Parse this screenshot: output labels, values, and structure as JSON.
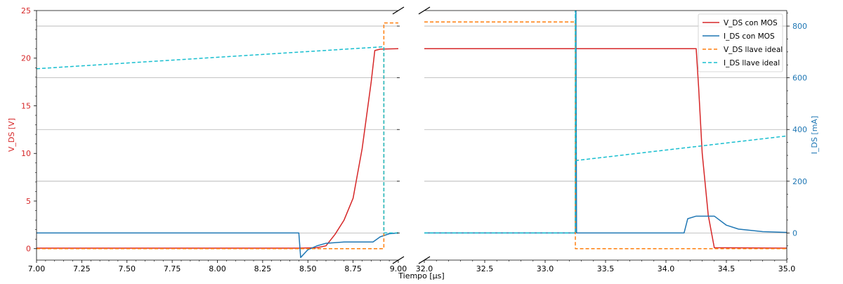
{
  "chart_data": {
    "type": "line",
    "xlabel": "Tiempo [μs]",
    "ylabel_left": "V_DS [V]",
    "ylabel_right": "I_DS [mA]",
    "left_panel": {
      "xlim": [
        7.0,
        9.0
      ],
      "xticks": [
        7.0,
        7.25,
        7.5,
        7.75,
        8.0,
        8.25,
        8.5,
        8.75,
        9.0
      ],
      "xtick_labels": [
        "7.00",
        "7.25",
        "7.50",
        "7.75",
        "8.00",
        "8.25",
        "8.50",
        "8.75",
        "9.00"
      ]
    },
    "right_panel": {
      "xlim": [
        32.0,
        35.0
      ],
      "xticks": [
        32.0,
        32.5,
        33.0,
        33.5,
        34.0,
        34.5,
        35.0
      ],
      "xtick_labels": [
        "32.0",
        "32.5",
        "33.0",
        "33.5",
        "34.0",
        "34.5",
        "35.0"
      ]
    },
    "y_left": {
      "lim": [
        -1.2,
        25
      ],
      "ticks": [
        0,
        5,
        10,
        15,
        20,
        25
      ],
      "tick_labels": [
        "0",
        "5",
        "10",
        "15",
        "20",
        "25"
      ],
      "color": "#d62728"
    },
    "y_right": {
      "lim": [
        -105,
        860
      ],
      "ticks": [
        0,
        200,
        400,
        600,
        800
      ],
      "tick_labels": [
        "0",
        "200",
        "400",
        "600",
        "800"
      ],
      "color": "#1f77b4"
    },
    "grid": "horizontal, right axis",
    "legend_position": "top-right",
    "series": [
      {
        "key": "vds_mos",
        "name": "V_DS con MOS",
        "axis": "left",
        "color": "#d62728",
        "dash": "solid",
        "left": [
          [
            7.0,
            0.05
          ],
          [
            8.45,
            0.05
          ],
          [
            8.55,
            0.1
          ],
          [
            8.6,
            0.3
          ],
          [
            8.65,
            1.5
          ],
          [
            8.7,
            3.0
          ],
          [
            8.75,
            5.3
          ],
          [
            8.8,
            10.5
          ],
          [
            8.85,
            17.5
          ],
          [
            8.87,
            20.8
          ],
          [
            8.9,
            20.95
          ],
          [
            9.0,
            21.0
          ]
        ],
        "right": [
          [
            32.0,
            21.0
          ],
          [
            34.25,
            21.0
          ],
          [
            34.27,
            17.0
          ],
          [
            34.3,
            10.0
          ],
          [
            34.35,
            3.5
          ],
          [
            34.4,
            0.1
          ],
          [
            35.0,
            0.05
          ]
        ]
      },
      {
        "key": "ids_mos",
        "name": "I_DS con MOS",
        "axis": "right",
        "color": "#1f77b4",
        "dash": "solid",
        "left": [
          [
            7.0,
            0
          ],
          [
            8.45,
            0
          ],
          [
            8.46,
            -95
          ],
          [
            8.5,
            -65
          ],
          [
            8.55,
            -50
          ],
          [
            8.6,
            -40
          ],
          [
            8.7,
            -35
          ],
          [
            8.86,
            -35
          ],
          [
            8.9,
            -15
          ],
          [
            8.95,
            -3
          ],
          [
            9.0,
            0
          ]
        ],
        "right": [
          [
            32.0,
            0
          ],
          [
            33.25,
            0
          ],
          [
            33.255,
            860
          ],
          [
            33.26,
            0
          ],
          [
            34.15,
            0
          ],
          [
            34.18,
            55
          ],
          [
            34.25,
            65
          ],
          [
            34.4,
            65
          ],
          [
            34.5,
            30
          ],
          [
            34.6,
            15
          ],
          [
            34.8,
            5
          ],
          [
            35.0,
            2
          ]
        ]
      },
      {
        "key": "vds_ideal",
        "name": "V_DS llave ideal",
        "axis": "left",
        "color": "#ff7f0e",
        "dash": "dashed",
        "left": [
          [
            7.0,
            0
          ],
          [
            8.92,
            0
          ],
          [
            8.92,
            23.7
          ],
          [
            9.0,
            23.7
          ]
        ],
        "right": [
          [
            32.0,
            23.8
          ],
          [
            33.25,
            23.8
          ],
          [
            33.25,
            0
          ],
          [
            35.0,
            0
          ]
        ]
      },
      {
        "key": "ids_ideal",
        "name": "I_DS llave ideal",
        "axis": "right",
        "color": "#17becf",
        "dash": "dashed",
        "left": [
          [
            7.0,
            635
          ],
          [
            8.92,
            720
          ],
          [
            8.92,
            0
          ],
          [
            9.0,
            0
          ]
        ],
        "right": [
          [
            32.0,
            0
          ],
          [
            33.25,
            0
          ],
          [
            33.25,
            860
          ],
          [
            33.255,
            280
          ],
          [
            35.0,
            375
          ]
        ]
      }
    ]
  }
}
